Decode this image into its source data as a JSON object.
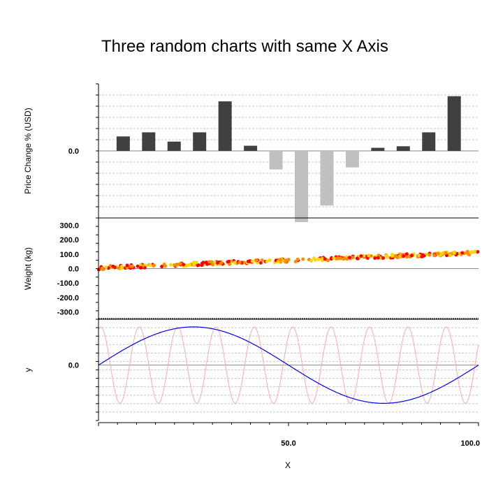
{
  "chart_data": {
    "title": "Three random charts with same X Axis",
    "xlabel": "X",
    "xlim": [
      0,
      100
    ],
    "x_tick_labels": [
      {
        "value": 50,
        "label": "50.0"
      },
      {
        "value": 100,
        "label": "100.0"
      }
    ],
    "subplots": [
      {
        "type": "bar",
        "ylabel": "Price Change % (USD)",
        "ylim": [
          -6.5,
          6.5
        ],
        "y_tick_labels": [
          {
            "value": 0,
            "label": "0.0"
          }
        ],
        "grid": "dashed-horizontal",
        "colors": {
          "positive": "#404040",
          "negative": "#c0c0c0"
        },
        "x": [
          6.5,
          13.2,
          19.9,
          26.6,
          33.3,
          40.0,
          46.7,
          53.4,
          60.1,
          66.8,
          73.5,
          80.2,
          86.9,
          93.6
        ],
        "values": [
          1.4,
          1.8,
          0.9,
          1.8,
          4.8,
          0.5,
          -1.8,
          -6.9,
          -5.3,
          -1.6,
          0.3,
          0.45,
          1.8,
          5.3
        ]
      },
      {
        "type": "scatter",
        "ylabel": "Weight (kg)",
        "ylim": [
          -350,
          350
        ],
        "y_tick_labels": [
          {
            "value": 300,
            "label": "300.0"
          },
          {
            "value": 200,
            "label": "200.0"
          },
          {
            "value": 100,
            "label": "100.0"
          },
          {
            "value": 0,
            "label": "0.0"
          },
          {
            "value": -100,
            "label": "-100.0"
          },
          {
            "value": -200,
            "label": "-200.0"
          },
          {
            "value": -300,
            "label": "-300.0"
          }
        ],
        "colors": [
          "#ff0000",
          "#ff8c00",
          "#ffd700"
        ],
        "trend": {
          "y_at_x0": 5,
          "y_at_x100": 110,
          "noise": 12
        },
        "x_range": [
          0,
          100
        ],
        "point_count": 330
      },
      {
        "type": "line",
        "ylabel": "y",
        "ylim": [
          -1.45,
          1.2
        ],
        "y_tick_labels": [
          {
            "value": 0,
            "label": "0.0"
          }
        ],
        "grid": "dashed-horizontal",
        "series": [
          {
            "color": "#0000ff",
            "amplitude": 1.0,
            "period": 100,
            "phase": 0
          },
          {
            "color": "#ffaaaa",
            "amplitude": 1.0,
            "period": 10.1,
            "phase": 1.2
          }
        ]
      }
    ]
  }
}
